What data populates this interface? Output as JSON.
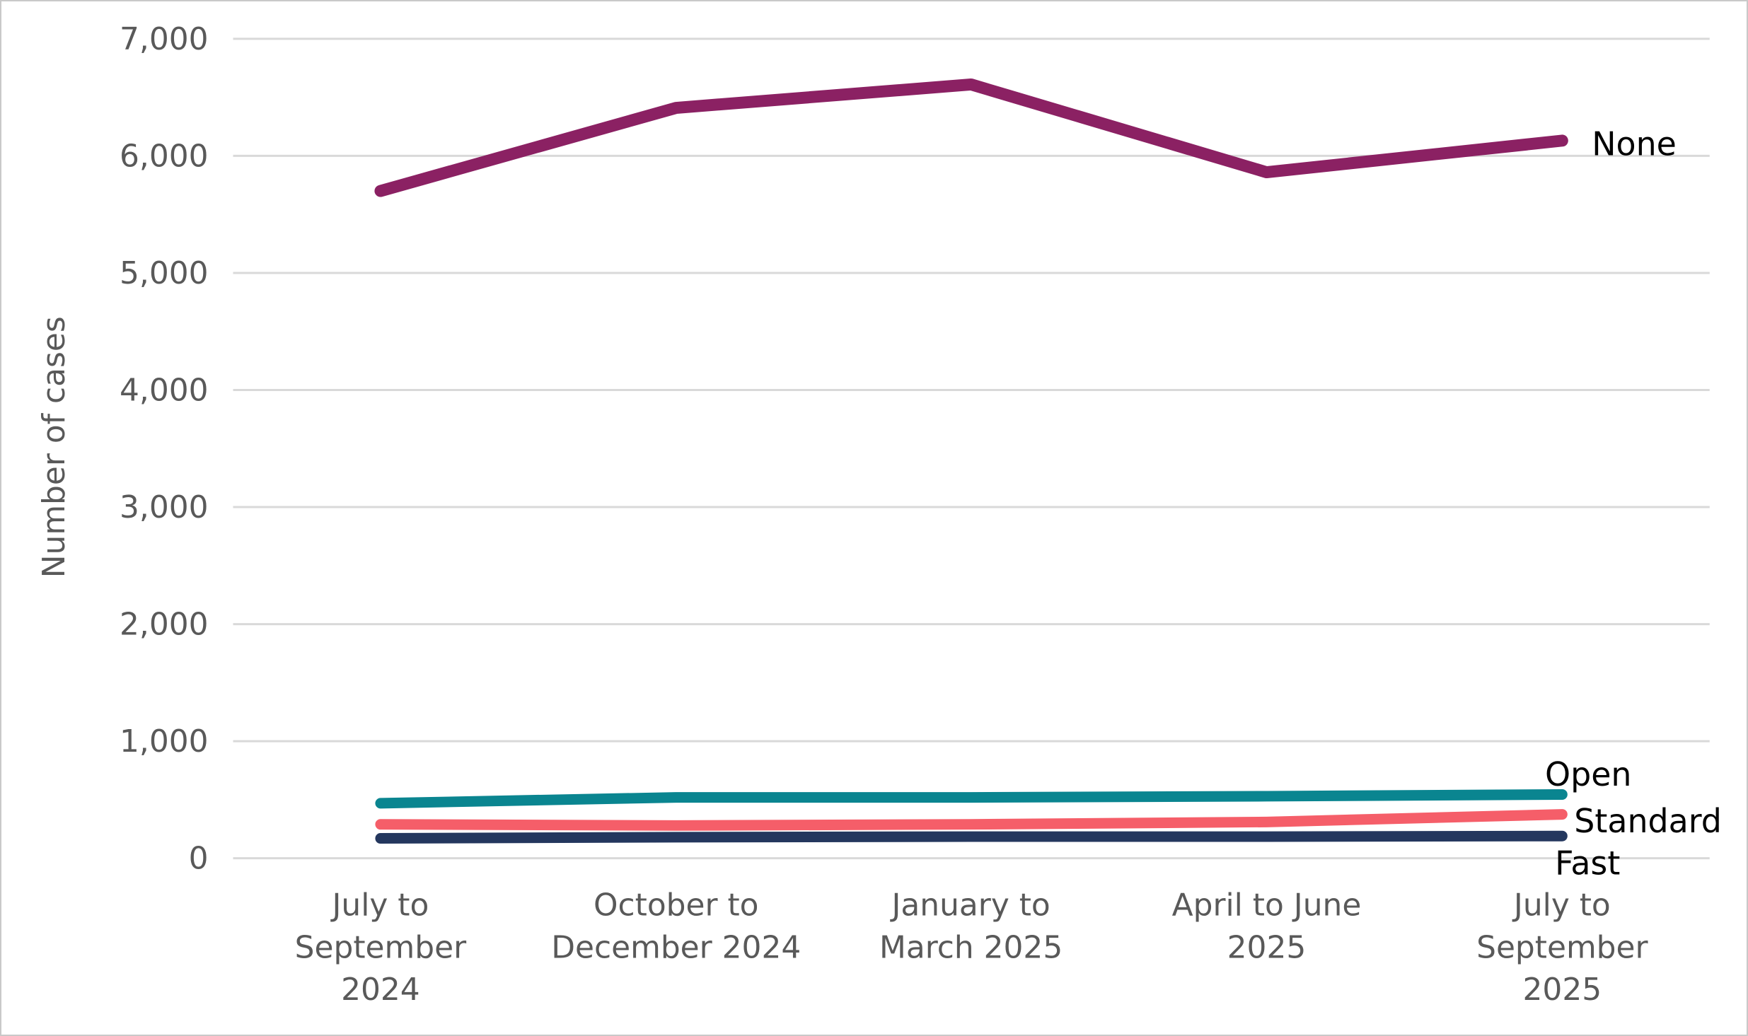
{
  "chart_data": {
    "type": "line",
    "title": "",
    "xlabel": "",
    "ylabel": "Number of cases",
    "ylim": [
      0,
      7000
    ],
    "ytick_interval": 1000,
    "y_tick_labels": [
      "0",
      "1,000",
      "2,000",
      "3,000",
      "4,000",
      "5,000",
      "6,000",
      "7,000"
    ],
    "grid": "horizontal-only",
    "legend_position": "end-of-line-direct-labels",
    "categories": [
      "July to September 2024",
      "October to December 2024",
      "January to March 2025",
      "April to June 2025",
      "July to September 2025"
    ],
    "category_label_lines": [
      [
        "July to",
        "September",
        "2024"
      ],
      [
        "October to",
        "December 2024"
      ],
      [
        "January to",
        "March 2025"
      ],
      [
        "April to June",
        "2025"
      ],
      [
        "July to",
        "September",
        "2025"
      ]
    ],
    "series": [
      {
        "name": "None",
        "color": "#8B2163",
        "values": [
          5700,
          6410,
          6610,
          5860,
          6130
        ]
      },
      {
        "name": "Open",
        "color": "#0A8590",
        "values": [
          470,
          520,
          520,
          530,
          545
        ]
      },
      {
        "name": "Standard",
        "color": "#F55E69",
        "values": [
          290,
          280,
          290,
          310,
          375
        ]
      },
      {
        "name": "Fast",
        "color": "#24375E",
        "values": [
          170,
          180,
          185,
          185,
          190
        ]
      }
    ],
    "colors": {
      "grid": "#D9D9D9",
      "axis_text": "#595959",
      "series_label_text": "#000000",
      "border": "#C9C9C9",
      "background": "#FFFFFF"
    }
  }
}
